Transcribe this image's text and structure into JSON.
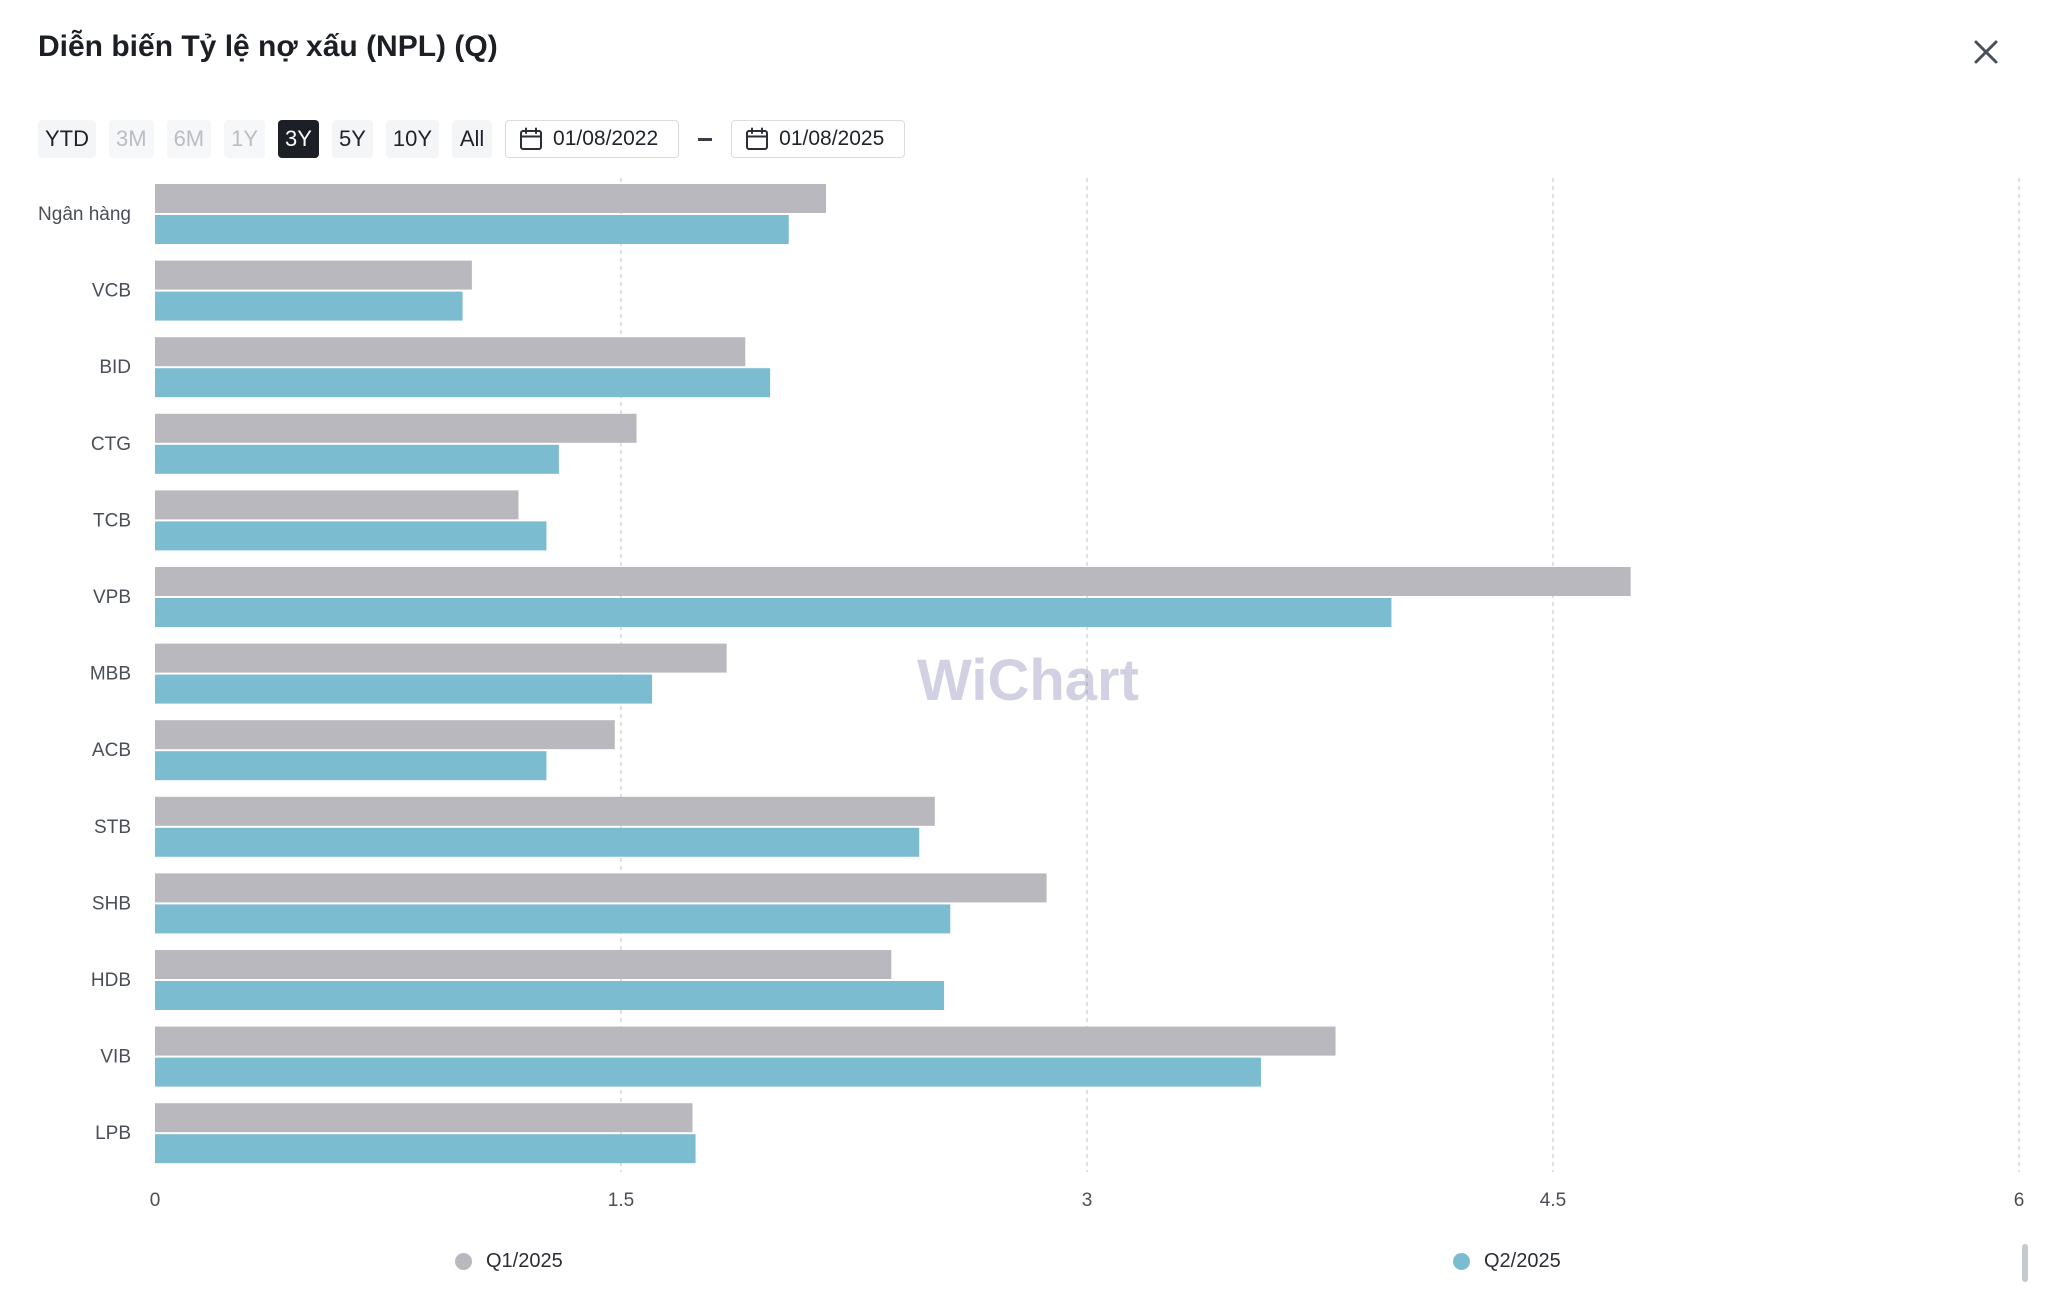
{
  "header": {
    "title": "Diễn biến Tỷ lệ nợ xấu (NPL) (Q)"
  },
  "toolbar": {
    "ranges": [
      {
        "label": "YTD",
        "state": "normal"
      },
      {
        "label": "3M",
        "state": "disabled"
      },
      {
        "label": "6M",
        "state": "disabled"
      },
      {
        "label": "1Y",
        "state": "disabled"
      },
      {
        "label": "3Y",
        "state": "active"
      },
      {
        "label": "5Y",
        "state": "normal"
      },
      {
        "label": "10Y",
        "state": "normal"
      },
      {
        "label": "All",
        "state": "normal"
      }
    ],
    "date_from": "01/08/2022",
    "date_to": "01/08/2025"
  },
  "watermark": "WiChart",
  "chart_data": {
    "type": "bar",
    "orientation": "horizontal",
    "categories": [
      "Ngân hàng",
      "VCB",
      "BID",
      "CTG",
      "TCB",
      "VPB",
      "MBB",
      "ACB",
      "STB",
      "SHB",
      "HDB",
      "VIB",
      "LPB"
    ],
    "series": [
      {
        "name": "Q1/2025",
        "color": "#b8b8be",
        "values": [
          2.16,
          1.02,
          1.9,
          1.55,
          1.17,
          4.75,
          1.84,
          1.48,
          2.51,
          2.87,
          2.37,
          3.8,
          1.73
        ]
      },
      {
        "name": "Q2/2025",
        "color": "#7cbcd0",
        "values": [
          2.04,
          0.99,
          1.98,
          1.3,
          1.26,
          3.98,
          1.6,
          1.26,
          2.46,
          2.56,
          2.54,
          3.56,
          1.74
        ]
      }
    ],
    "xlim": [
      0,
      6
    ],
    "xticks": [
      "0",
      "1.5",
      "3",
      "4.5",
      "6"
    ],
    "grid": "vertical-dashed",
    "legend_position": "bottom"
  },
  "colors": {
    "q1": "#b8b8be",
    "q2": "#7cbcd0",
    "active_button": "#1c1f26"
  }
}
